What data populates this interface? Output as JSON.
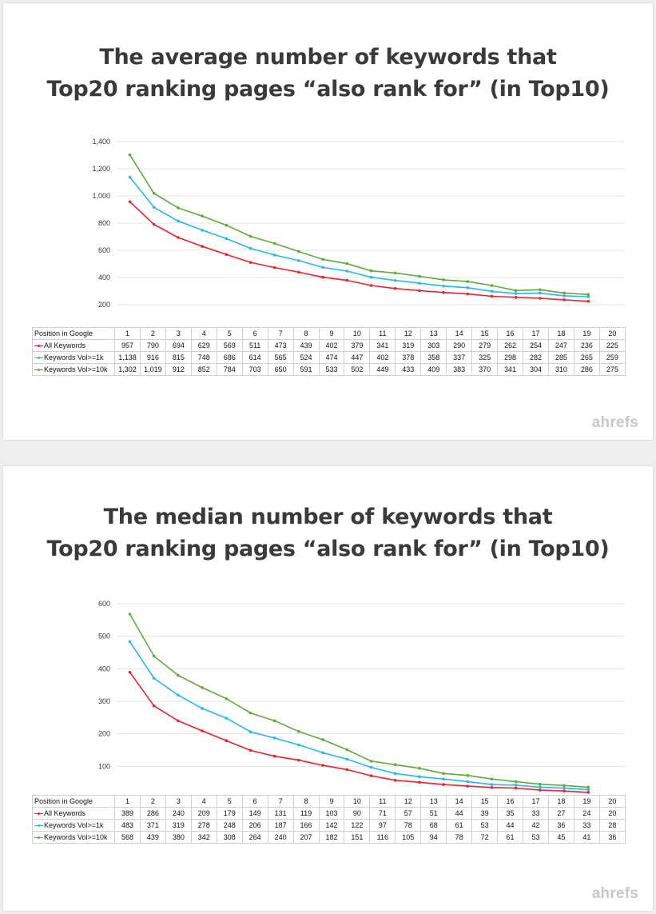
{
  "brand": "ahrefs",
  "colors": {
    "all": "#f0212b",
    "vol1k": "#27b7ef",
    "vol10k": "#62a93e",
    "grid": "#e4e4e4"
  },
  "chart_data": [
    {
      "type": "line",
      "title_lines": [
        "The average number of keywords that",
        "Top20 ranking pages “also rank for” (in Top10)"
      ],
      "table_header": "Position in Google",
      "x": [
        "1",
        "2",
        "3",
        "4",
        "5",
        "6",
        "7",
        "8",
        "9",
        "10",
        "11",
        "12",
        "13",
        "14",
        "15",
        "16",
        "17",
        "18",
        "19",
        "20"
      ],
      "ylim": [
        0,
        1400
      ],
      "yticks": [
        200,
        400,
        600,
        800,
        1000,
        1200,
        1400
      ],
      "ytick_labels": [
        "200",
        "400",
        "600",
        "800",
        "1,000",
        "1,200",
        "1,400"
      ],
      "grid": true,
      "series": [
        {
          "name": "All Keywords",
          "color_key": "all",
          "values": [
            957,
            790,
            694,
            629,
            569,
            511,
            473,
            439,
            402,
            379,
            341,
            319,
            303,
            290,
            279,
            262,
            254,
            247,
            236,
            225
          ],
          "labels": [
            "957",
            "790",
            "694",
            "629",
            "569",
            "511",
            "473",
            "439",
            "402",
            "379",
            "341",
            "319",
            "303",
            "290",
            "279",
            "262",
            "254",
            "247",
            "236",
            "225"
          ]
        },
        {
          "name": "Keywords Vol>=1k",
          "color_key": "vol1k",
          "values": [
            1138,
            916,
            815,
            748,
            686,
            614,
            565,
            524,
            474,
            447,
            402,
            378,
            358,
            337,
            325,
            298,
            282,
            285,
            265,
            259
          ],
          "labels": [
            "1,138",
            "916",
            "815",
            "748",
            "686",
            "614",
            "565",
            "524",
            "474",
            "447",
            "402",
            "378",
            "358",
            "337",
            "325",
            "298",
            "282",
            "285",
            "265",
            "259"
          ]
        },
        {
          "name": "Keywords Vol>=10k",
          "color_key": "vol10k",
          "values": [
            1302,
            1019,
            912,
            852,
            784,
            703,
            650,
            591,
            533,
            502,
            449,
            433,
            409,
            383,
            370,
            341,
            304,
            310,
            286,
            275
          ],
          "labels": [
            "1,302",
            "1,019",
            "912",
            "852",
            "784",
            "703",
            "650",
            "591",
            "533",
            "502",
            "449",
            "433",
            "409",
            "383",
            "370",
            "341",
            "304",
            "310",
            "286",
            "275"
          ]
        }
      ]
    },
    {
      "type": "line",
      "title_lines": [
        "The median number of keywords that",
        "Top20 ranking pages “also rank for” (in Top10)"
      ],
      "table_header": "Position in Google",
      "x": [
        "1",
        "2",
        "3",
        "4",
        "5",
        "6",
        "7",
        "8",
        "9",
        "10",
        "11",
        "12",
        "13",
        "14",
        "15",
        "16",
        "17",
        "18",
        "19",
        "20"
      ],
      "ylim": [
        0,
        600
      ],
      "yticks": [
        100,
        200,
        300,
        400,
        500,
        600
      ],
      "ytick_labels": [
        "100",
        "200",
        "300",
        "400",
        "500",
        "600"
      ],
      "grid": true,
      "series": [
        {
          "name": "All Keywords",
          "color_key": "all",
          "values": [
            389,
            286,
            240,
            209,
            179,
            149,
            131,
            119,
            103,
            90,
            71,
            57,
            51,
            44,
            39,
            35,
            33,
            27,
            24,
            20
          ],
          "labels": [
            "389",
            "286",
            "240",
            "209",
            "179",
            "149",
            "131",
            "119",
            "103",
            "90",
            "71",
            "57",
            "51",
            "44",
            "39",
            "35",
            "33",
            "27",
            "24",
            "20"
          ]
        },
        {
          "name": "Keywords Vol>=1k",
          "color_key": "vol1k",
          "values": [
            483,
            371,
            319,
            278,
            248,
            206,
            187,
            166,
            142,
            122,
            97,
            78,
            68,
            61,
            53,
            44,
            42,
            36,
            33,
            28
          ],
          "labels": [
            "483",
            "371",
            "319",
            "278",
            "248",
            "206",
            "187",
            "166",
            "142",
            "122",
            "97",
            "78",
            "68",
            "61",
            "53",
            "44",
            "42",
            "36",
            "33",
            "28"
          ]
        },
        {
          "name": "Keywords Vol>=10k",
          "color_key": "vol10k",
          "values": [
            568,
            439,
            380,
            342,
            308,
            264,
            240,
            207,
            182,
            151,
            116,
            105,
            94,
            78,
            72,
            61,
            53,
            45,
            41,
            36
          ],
          "labels": [
            "568",
            "439",
            "380",
            "342",
            "308",
            "264",
            "240",
            "207",
            "182",
            "151",
            "116",
            "105",
            "94",
            "78",
            "72",
            "61",
            "53",
            "45",
            "41",
            "36"
          ]
        }
      ]
    }
  ]
}
